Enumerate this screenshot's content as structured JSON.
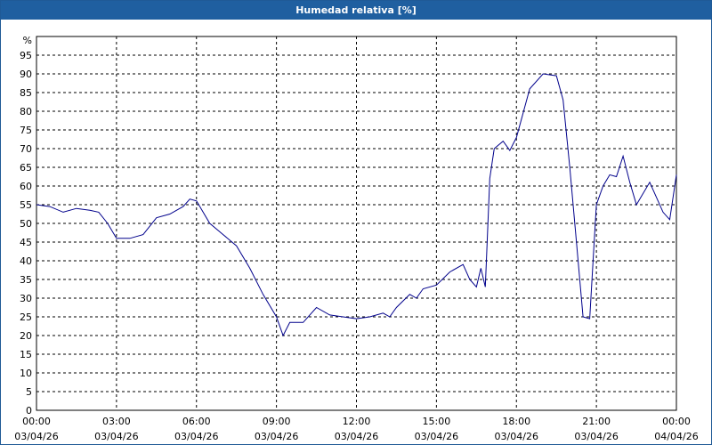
{
  "window": {
    "title": "Humedad relativa [%]"
  },
  "colors": {
    "titlebar": "#1f5fa0",
    "line": "#00008b",
    "grid": "#000000"
  },
  "chart_data": {
    "type": "line",
    "title": "Humedad relativa [%]",
    "ylabel": "%",
    "ylim": [
      0,
      100
    ],
    "grid": true,
    "y_ticks": [
      "0",
      "5",
      "10",
      "15",
      "20",
      "25",
      "30",
      "35",
      "40",
      "45",
      "50",
      "55",
      "60",
      "65",
      "70",
      "75",
      "80",
      "85",
      "90",
      "95"
    ],
    "x_ticks": [
      {
        "time": "00:00",
        "date": "03/04/26"
      },
      {
        "time": "03:00",
        "date": "03/04/26"
      },
      {
        "time": "06:00",
        "date": "03/04/26"
      },
      {
        "time": "09:00",
        "date": "03/04/26"
      },
      {
        "time": "12:00",
        "date": "03/04/26"
      },
      {
        "time": "15:00",
        "date": "03/04/26"
      },
      {
        "time": "18:00",
        "date": "03/04/26"
      },
      {
        "time": "21:00",
        "date": "03/04/26"
      },
      {
        "time": "00:00",
        "date": "04/04/26"
      }
    ],
    "series": [
      {
        "x": [
          "03/04/26 00:00",
          "03/04/26 00:30",
          "03/04/26 01:00",
          "03/04/26 01:30",
          "03/04/26 02:00",
          "03/04/26 02:20",
          "03/04/26 02:40",
          "03/04/26 03:00",
          "03/04/26 03:30",
          "03/04/26 04:00",
          "03/04/26 04:30",
          "03/04/26 05:00",
          "03/04/26 05:30",
          "03/04/26 05:45",
          "03/04/26 06:00",
          "03/04/26 06:30",
          "03/04/26 07:00",
          "03/04/26 07:30",
          "03/04/26 08:00",
          "03/04/26 08:30",
          "03/04/26 09:00",
          "03/04/26 09:15",
          "03/04/26 09:30",
          "03/04/26 10:00",
          "03/04/26 10:30",
          "03/04/26 11:00",
          "03/04/26 11:30",
          "03/04/26 12:00",
          "03/04/26 12:30",
          "03/04/26 13:00",
          "03/04/26 13:15",
          "03/04/26 13:30",
          "03/04/26 14:00",
          "03/04/26 14:15",
          "03/04/26 14:30",
          "03/04/26 15:00",
          "03/04/26 15:30",
          "03/04/26 16:00",
          "03/04/26 16:15",
          "03/04/26 16:30",
          "03/04/26 16:40",
          "03/04/26 16:50",
          "03/04/26 17:00",
          "03/04/26 17:10",
          "03/04/26 17:30",
          "03/04/26 17:45",
          "03/04/26 18:00",
          "03/04/26 18:30",
          "03/04/26 19:00",
          "03/04/26 19:30",
          "03/04/26 19:45",
          "03/04/26 20:00",
          "03/04/26 20:15",
          "03/04/26 20:30",
          "03/04/26 20:45",
          "03/04/26 20:55",
          "03/04/26 21:00",
          "03/04/26 21:15",
          "03/04/26 21:30",
          "03/04/26 21:45",
          "03/04/26 22:00",
          "03/04/26 22:15",
          "03/04/26 22:30",
          "03/04/26 23:00",
          "03/04/26 23:15",
          "03/04/26 23:30",
          "03/04/26 23:45",
          "04/04/26 00:00"
        ],
        "values": [
          55,
          54.5,
          53,
          54,
          53.5,
          53,
          50,
          46,
          46,
          47,
          51.5,
          52.5,
          54.5,
          56.5,
          56,
          50,
          47,
          44,
          38,
          31,
          25,
          20,
          23.5,
          23.5,
          27.5,
          25.5,
          25,
          24.5,
          25,
          26,
          25,
          27.5,
          31,
          30,
          32.5,
          33.5,
          37,
          39,
          35,
          33,
          38,
          33,
          62,
          70,
          72,
          69.5,
          73,
          86,
          90,
          89.5,
          83,
          65,
          45,
          25,
          24.5,
          45,
          55,
          60,
          63,
          62.5,
          68,
          61,
          55,
          61,
          57,
          53,
          51,
          63
        ]
      }
    ]
  }
}
